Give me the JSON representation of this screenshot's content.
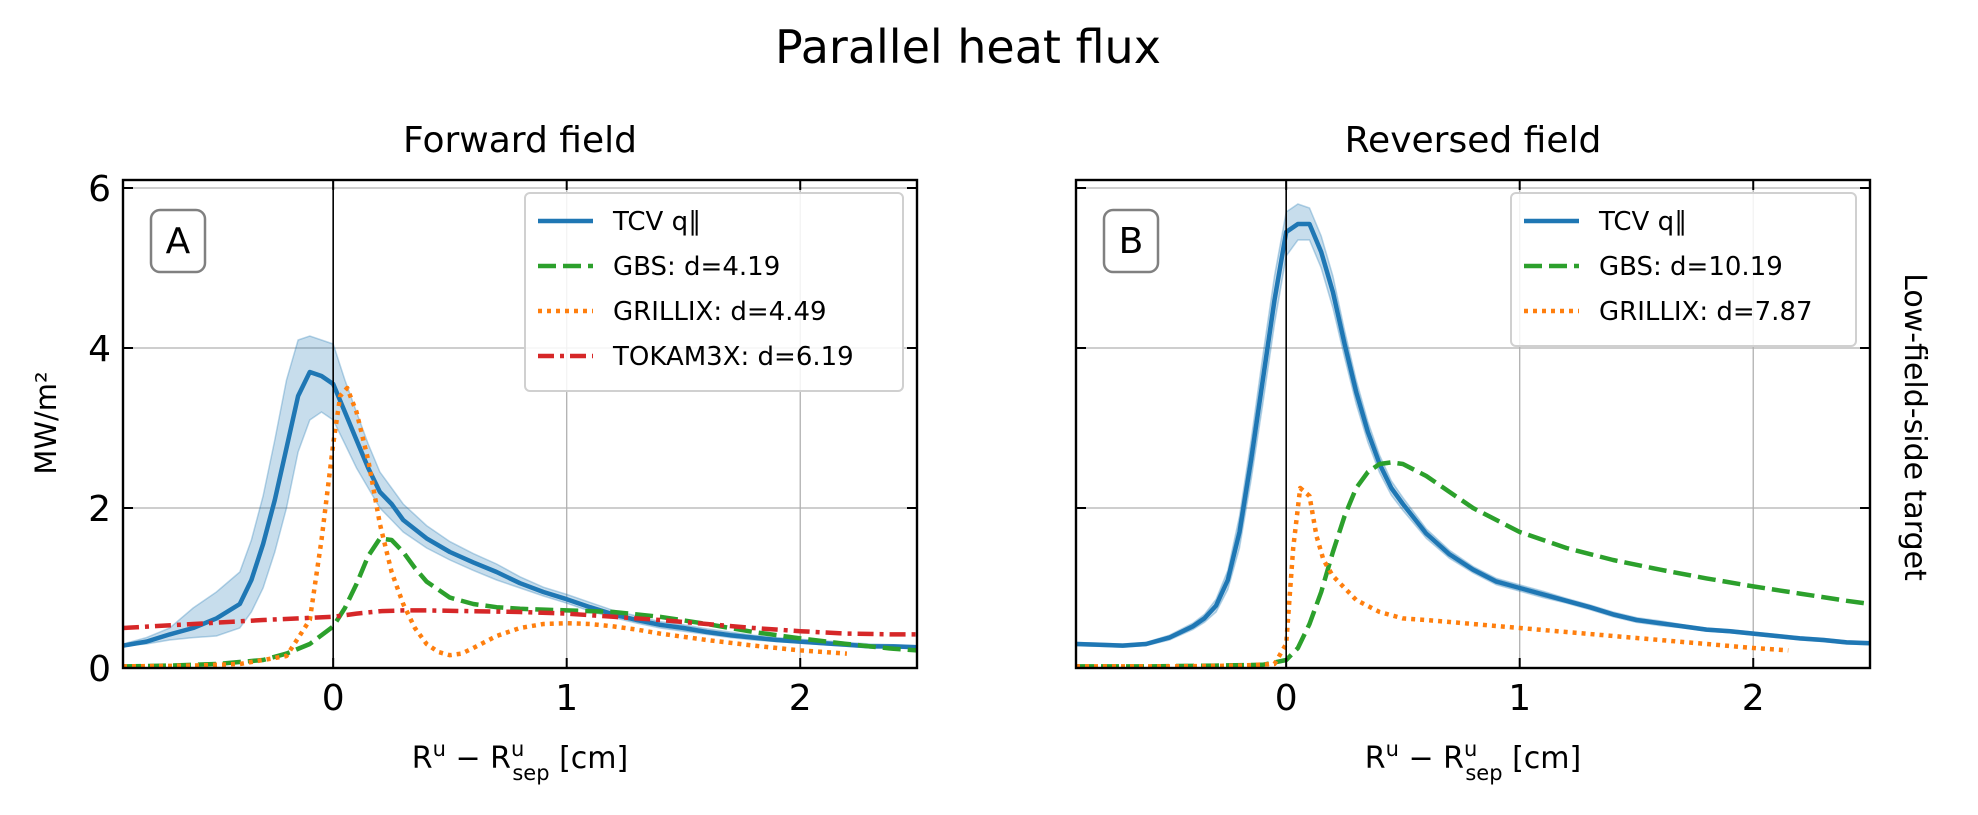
{
  "figure": {
    "title": "Parallel heat flux",
    "row_label": "Low-field-side target"
  },
  "chart_data": [
    {
      "type": "line",
      "title": "Forward field",
      "panel_label": "A",
      "xlabel": "R^u − R^u_sep [cm]",
      "ylabel": "MW/m²",
      "xlim": [
        -0.9,
        2.5
      ],
      "ylim": [
        0,
        6.1
      ],
      "xticks": [
        0,
        1,
        2
      ],
      "yticks": [
        0,
        2,
        4,
        6
      ],
      "grid": true,
      "separatrix_x": 0,
      "legend_position": "upper-right",
      "series": [
        {
          "name": "TCV q∥",
          "color": "#1f77b4",
          "style": "solid",
          "x": [
            -0.9,
            -0.8,
            -0.7,
            -0.6,
            -0.5,
            -0.4,
            -0.35,
            -0.3,
            -0.25,
            -0.2,
            -0.15,
            -0.1,
            -0.05,
            0.0,
            0.05,
            0.1,
            0.15,
            0.2,
            0.25,
            0.3,
            0.4,
            0.5,
            0.6,
            0.7,
            0.8,
            0.9,
            1.0,
            1.1,
            1.2,
            1.3,
            1.4,
            1.5,
            1.6,
            1.7,
            1.8,
            1.9,
            2.0,
            2.1,
            2.2,
            2.3,
            2.4,
            2.5
          ],
          "y": [
            0.28,
            0.33,
            0.42,
            0.5,
            0.62,
            0.8,
            1.1,
            1.55,
            2.1,
            2.75,
            3.4,
            3.7,
            3.65,
            3.55,
            3.2,
            2.85,
            2.5,
            2.2,
            2.05,
            1.85,
            1.62,
            1.45,
            1.32,
            1.2,
            1.06,
            0.95,
            0.86,
            0.76,
            0.67,
            0.6,
            0.54,
            0.5,
            0.45,
            0.41,
            0.38,
            0.35,
            0.33,
            0.31,
            0.29,
            0.27,
            0.27,
            0.26
          ],
          "lower": [
            0.28,
            0.3,
            0.35,
            0.38,
            0.4,
            0.5,
            0.7,
            1.0,
            1.45,
            2.0,
            2.7,
            3.1,
            3.2,
            3.1,
            2.8,
            2.5,
            2.25,
            2.0,
            1.85,
            1.7,
            1.5,
            1.35,
            1.22,
            1.1,
            1.0,
            0.9,
            0.81,
            0.71,
            0.63,
            0.56,
            0.5,
            0.46,
            0.42,
            0.38,
            0.35,
            0.33,
            0.31,
            0.29,
            0.27,
            0.25,
            0.25,
            0.24
          ],
          "upper": [
            0.3,
            0.38,
            0.5,
            0.75,
            0.95,
            1.2,
            1.6,
            2.15,
            2.85,
            3.6,
            4.1,
            4.15,
            4.1,
            4.05,
            3.6,
            3.2,
            2.8,
            2.45,
            2.25,
            2.05,
            1.78,
            1.58,
            1.43,
            1.3,
            1.14,
            1.01,
            0.92,
            0.82,
            0.72,
            0.65,
            0.58,
            0.54,
            0.49,
            0.45,
            0.41,
            0.38,
            0.36,
            0.34,
            0.32,
            0.3,
            0.29,
            0.28
          ]
        },
        {
          "name": "GBS: d=4.19",
          "color": "#2ca02c",
          "style": "dashed",
          "x": [
            -0.9,
            -0.7,
            -0.5,
            -0.3,
            -0.2,
            -0.1,
            0.0,
            0.05,
            0.1,
            0.15,
            0.2,
            0.25,
            0.3,
            0.35,
            0.4,
            0.5,
            0.6,
            0.7,
            0.8,
            0.9,
            1.0,
            1.2,
            1.4,
            1.6,
            1.8,
            2.0,
            2.2,
            2.4,
            2.5
          ],
          "y": [
            0.02,
            0.03,
            0.05,
            0.1,
            0.18,
            0.3,
            0.52,
            0.75,
            1.05,
            1.4,
            1.62,
            1.6,
            1.45,
            1.25,
            1.08,
            0.88,
            0.8,
            0.76,
            0.74,
            0.73,
            0.72,
            0.7,
            0.64,
            0.55,
            0.45,
            0.37,
            0.3,
            0.24,
            0.22
          ]
        },
        {
          "name": "GRILLIX: d=4.49",
          "color": "#ff7f0e",
          "style": "dotted",
          "x": [
            -0.9,
            -0.6,
            -0.4,
            -0.2,
            -0.1,
            -0.05,
            0.0,
            0.03,
            0.06,
            0.1,
            0.15,
            0.2,
            0.25,
            0.3,
            0.35,
            0.4,
            0.45,
            0.5,
            0.55,
            0.6,
            0.7,
            0.8,
            0.9,
            1.0,
            1.1,
            1.2,
            1.3,
            1.4,
            1.6,
            1.8,
            2.0,
            2.2
          ],
          "y": [
            0.02,
            0.03,
            0.05,
            0.15,
            0.6,
            1.6,
            2.8,
            3.4,
            3.5,
            3.2,
            2.6,
            1.8,
            1.2,
            0.8,
            0.5,
            0.3,
            0.2,
            0.16,
            0.18,
            0.25,
            0.4,
            0.5,
            0.55,
            0.56,
            0.55,
            0.52,
            0.48,
            0.43,
            0.35,
            0.28,
            0.22,
            0.18
          ]
        },
        {
          "name": "TOKAM3X: d=6.19",
          "color": "#d62728",
          "style": "dashdot",
          "x": [
            -0.9,
            -0.6,
            -0.3,
            0.0,
            0.1,
            0.2,
            0.3,
            0.4,
            0.6,
            0.8,
            1.0,
            1.2,
            1.4,
            1.6,
            1.8,
            2.0,
            2.2,
            2.4,
            2.5
          ],
          "y": [
            0.5,
            0.55,
            0.6,
            0.64,
            0.68,
            0.71,
            0.72,
            0.72,
            0.71,
            0.7,
            0.68,
            0.64,
            0.6,
            0.55,
            0.5,
            0.46,
            0.43,
            0.42,
            0.42
          ]
        }
      ]
    },
    {
      "type": "line",
      "title": "Reversed field",
      "panel_label": "B",
      "xlabel": "R^u − R^u_sep [cm]",
      "ylabel": "",
      "xlim": [
        -0.9,
        2.5
      ],
      "ylim": [
        0,
        6.1
      ],
      "xticks": [
        0,
        1,
        2
      ],
      "yticks": [
        0,
        2,
        4,
        6
      ],
      "grid": true,
      "separatrix_x": 0,
      "legend_position": "upper-right",
      "series": [
        {
          "name": "TCV q∥",
          "color": "#1f77b4",
          "style": "solid",
          "x": [
            -0.9,
            -0.8,
            -0.7,
            -0.6,
            -0.5,
            -0.4,
            -0.35,
            -0.3,
            -0.25,
            -0.2,
            -0.15,
            -0.1,
            -0.05,
            0.0,
            0.05,
            0.1,
            0.15,
            0.2,
            0.25,
            0.3,
            0.35,
            0.4,
            0.45,
            0.5,
            0.6,
            0.7,
            0.8,
            0.9,
            1.0,
            1.1,
            1.2,
            1.3,
            1.4,
            1.5,
            1.6,
            1.7,
            1.8,
            1.9,
            2.0,
            2.1,
            2.2,
            2.3,
            2.4,
            2.5
          ],
          "y": [
            0.3,
            0.29,
            0.28,
            0.3,
            0.38,
            0.52,
            0.62,
            0.78,
            1.1,
            1.7,
            2.6,
            3.6,
            4.6,
            5.45,
            5.55,
            5.55,
            5.2,
            4.7,
            4.05,
            3.45,
            2.95,
            2.55,
            2.25,
            2.05,
            1.68,
            1.42,
            1.23,
            1.08,
            1.0,
            0.92,
            0.84,
            0.76,
            0.67,
            0.6,
            0.56,
            0.52,
            0.48,
            0.46,
            0.43,
            0.4,
            0.37,
            0.35,
            0.32,
            0.31
          ],
          "lower": [
            0.28,
            0.27,
            0.26,
            0.28,
            0.35,
            0.48,
            0.57,
            0.7,
            0.98,
            1.5,
            2.35,
            3.3,
            4.3,
            5.15,
            5.35,
            5.35,
            5.0,
            4.5,
            3.88,
            3.3,
            2.82,
            2.44,
            2.16,
            1.97,
            1.62,
            1.37,
            1.19,
            1.04,
            0.96,
            0.88,
            0.81,
            0.73,
            0.64,
            0.57,
            0.53,
            0.5,
            0.46,
            0.44,
            0.41,
            0.38,
            0.35,
            0.33,
            0.3,
            0.29
          ],
          "upper": [
            0.32,
            0.31,
            0.3,
            0.32,
            0.41,
            0.56,
            0.67,
            0.86,
            1.22,
            1.9,
            2.85,
            3.9,
            4.9,
            5.7,
            5.8,
            5.75,
            5.4,
            4.9,
            4.22,
            3.6,
            3.08,
            2.66,
            2.34,
            2.13,
            1.74,
            1.47,
            1.27,
            1.12,
            1.04,
            0.96,
            0.87,
            0.79,
            0.7,
            0.63,
            0.59,
            0.54,
            0.5,
            0.48,
            0.45,
            0.42,
            0.39,
            0.37,
            0.34,
            0.33
          ]
        },
        {
          "name": "GBS: d=10.19",
          "color": "#2ca02c",
          "style": "dashed",
          "x": [
            -0.9,
            -0.6,
            -0.3,
            -0.1,
            0.0,
            0.05,
            0.1,
            0.15,
            0.2,
            0.25,
            0.3,
            0.35,
            0.4,
            0.45,
            0.5,
            0.6,
            0.7,
            0.8,
            0.9,
            1.0,
            1.2,
            1.4,
            1.6,
            1.8,
            2.0,
            2.2,
            2.4,
            2.5
          ],
          "y": [
            0.02,
            0.02,
            0.03,
            0.04,
            0.1,
            0.25,
            0.55,
            0.95,
            1.45,
            1.9,
            2.25,
            2.45,
            2.55,
            2.57,
            2.55,
            2.4,
            2.2,
            2.0,
            1.85,
            1.7,
            1.5,
            1.35,
            1.23,
            1.12,
            1.02,
            0.93,
            0.84,
            0.8
          ]
        },
        {
          "name": "GRILLIX: d=7.87",
          "color": "#ff7f0e",
          "style": "dotted",
          "x": [
            -0.9,
            -0.5,
            -0.2,
            -0.05,
            0.0,
            0.03,
            0.06,
            0.1,
            0.13,
            0.16,
            0.2,
            0.25,
            0.3,
            0.4,
            0.5,
            0.6,
            0.8,
            1.0,
            1.2,
            1.4,
            1.6,
            1.8,
            2.0,
            2.15
          ],
          "y": [
            0.02,
            0.02,
            0.03,
            0.05,
            0.3,
            1.5,
            2.25,
            2.15,
            1.65,
            1.35,
            1.15,
            1.0,
            0.85,
            0.7,
            0.62,
            0.6,
            0.55,
            0.5,
            0.45,
            0.4,
            0.35,
            0.3,
            0.25,
            0.22
          ]
        }
      ]
    }
  ]
}
